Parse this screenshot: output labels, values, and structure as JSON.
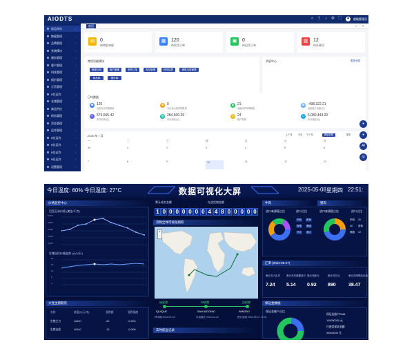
{
  "admin": {
    "logo": "AIODTS",
    "user": "超级管理员",
    "tab_home": "首页",
    "sidebar": [
      "商品库存",
      "数据管理",
      "品牌管理",
      "系统模块",
      "服务管理",
      "客户管理",
      "科技管理",
      "报价管理",
      "订货管理",
      "B位运作",
      "仓储管理",
      "商品供应",
      "财务管理",
      "资金管理",
      "运作管理",
      "B位运作",
      "B位运作",
      "B位运作",
      "B位运作",
      "设置管理"
    ],
    "stats": [
      {
        "value": "0",
        "label": "待审批单据",
        "color": "#f5b400"
      },
      {
        "value": "120",
        "label": "待发货订单",
        "color": "#3b82f6"
      },
      {
        "value": "0",
        "label": "待出货订单",
        "color": "#22c55e"
      },
      {
        "value": "12",
        "label": "待办事项",
        "color": "#ef4444"
      }
    ],
    "quick_title": "常用功能模块",
    "quick_buttons": [
      "数据分析",
      "客户管理",
      "采购订单",
      "库存管理",
      "财务结算",
      "销售出库管理",
      "商品库",
      "报价单"
    ],
    "notice_title": "消息中心",
    "notice_more": "更多消息",
    "data_title": "日均数据",
    "metrics": [
      {
        "value": "120",
        "label": "当前在仓货物数量",
        "color": "#3b82f6"
      },
      {
        "value": "0",
        "label": "今日待出库货物数量",
        "color": "#f59e0b"
      },
      {
        "value": "21",
        "label": "运输中的车辆数量",
        "color": "#22c55e"
      },
      {
        "value": "-498,322.21",
        "label": "运费账户余额(元)",
        "color": "#60a5fa"
      },
      {
        "value": "573,665.42",
        "label": "本月利润(元)",
        "color": "#6366f1"
      },
      {
        "value": "284,600.29",
        "label": "本月营收(元)",
        "color": "#14b8a6"
      },
      {
        "value": "24",
        "label": "客户数量",
        "color": "#eab308"
      },
      {
        "value": "5,080,443.20",
        "label": "本月营收(元)",
        "color": "#0ea5e9"
      }
    ],
    "calendar": {
      "month": "2025 年 7 月",
      "prev": "上个月",
      "today": "今天",
      "next": "下个月",
      "add": "新建日程",
      "more": "更多",
      "week_headers": [
        "一",
        "二",
        "三",
        "四",
        "五",
        "六",
        "日"
      ],
      "row1": [
        "30",
        "1",
        "2",
        "3",
        "4",
        "5",
        "6"
      ],
      "row2": [
        "7",
        "8",
        "9",
        "10",
        "11",
        "12",
        "13"
      ]
    },
    "float_buttons": [
      "●",
      "●",
      "AI",
      "◎"
    ]
  },
  "dash": {
    "temp_today": "今日温度: 60%",
    "temp_now": "今日温度: 27°C",
    "title": "数据可视化大屏",
    "date": "2025-05-08",
    "weekday": "星期四",
    "time": "22:51:",
    "left_panel_title": "价格监控中心",
    "chart1_title": "巴西玉米价格 (美金/千克)",
    "chart1_y": [
      "5,000",
      "4,800",
      "4,600",
      "4,400",
      "4,200"
    ],
    "chart2_title": "生猪出栏价格走势 (元/公斤)",
    "chart2_y": [
      "20",
      "15",
      "10",
      "5",
      "0"
    ],
    "table_title": "大连生猪期货",
    "table_headers": [
      "名称",
      "收盘价(元/吨)",
      "涨跌额",
      "涨跌幅度"
    ],
    "table_rows": [
      [
        "生猪主力",
        "18450",
        "-65",
        "-0.35%"
      ],
      [
        "生猪连续",
        "18160",
        "-15",
        "-0.08%"
      ]
    ],
    "counter_label_a": "累计成交金额",
    "counter_label_b": "在途货物金额",
    "counter_digits": [
      "1",
      "0",
      "0",
      "0",
      "0",
      "0",
      "0",
      "0",
      "4",
      "4",
      "8",
      "0",
      "0",
      "0",
      "0",
      "0"
    ],
    "map_title": "货物全球可视化跟踪",
    "route": [
      {
        "name": "始发港",
        "city": "IQUIQUE",
        "date": "停中期 2024-03-16"
      },
      {
        "name": "中转港",
        "city": "SAN ANTONIO",
        "date": "计划离开 2024-04-12"
      },
      {
        "name": "目的港",
        "city": "WINGBO",
        "date": "预计到港 2024-05-17 10:01"
      }
    ],
    "bottom_left_title": "实时航运记录",
    "donut1_title": "牛肉",
    "donut1_sub1": "进口来源国占比",
    "donut1_sub2": "进口占比",
    "donut1_tags": [
      "巴西",
      "阿根",
      "乌拉",
      "新西",
      "美国",
      "澳大"
    ],
    "donut2_title": "猪肉",
    "donut2_sub1": "进口来源国占比",
    "donut2_sub2": "进口占比",
    "donut2_tags": [
      "巴西",
      "40",
      "美国",
      "20",
      "其他",
      "12"
    ],
    "rates_title": "汇率 (2024-05-27)",
    "rates": [
      {
        "label": "美元兑人民币",
        "value": "7.24"
      },
      {
        "label": "美元兑巴西雷亚尔",
        "value": "5.14"
      },
      {
        "label": "美元兑欧元",
        "value": "0.92"
      },
      {
        "label": "美元兑日元",
        "value": "890"
      },
      {
        "label": "美元兑阿根廷比索",
        "value": "38.47"
      }
    ],
    "guarantee_title": "保证金数据",
    "guarantee_sub": "保证金账户占比",
    "guarantee_items": [
      "保证金账户RMB",
      "100000000 元",
      "已使用保证金额",
      "30000000 元"
    ],
    "icon_names": [
      "search-icon",
      "bell-icon",
      "settings-icon",
      "user-icon"
    ]
  }
}
